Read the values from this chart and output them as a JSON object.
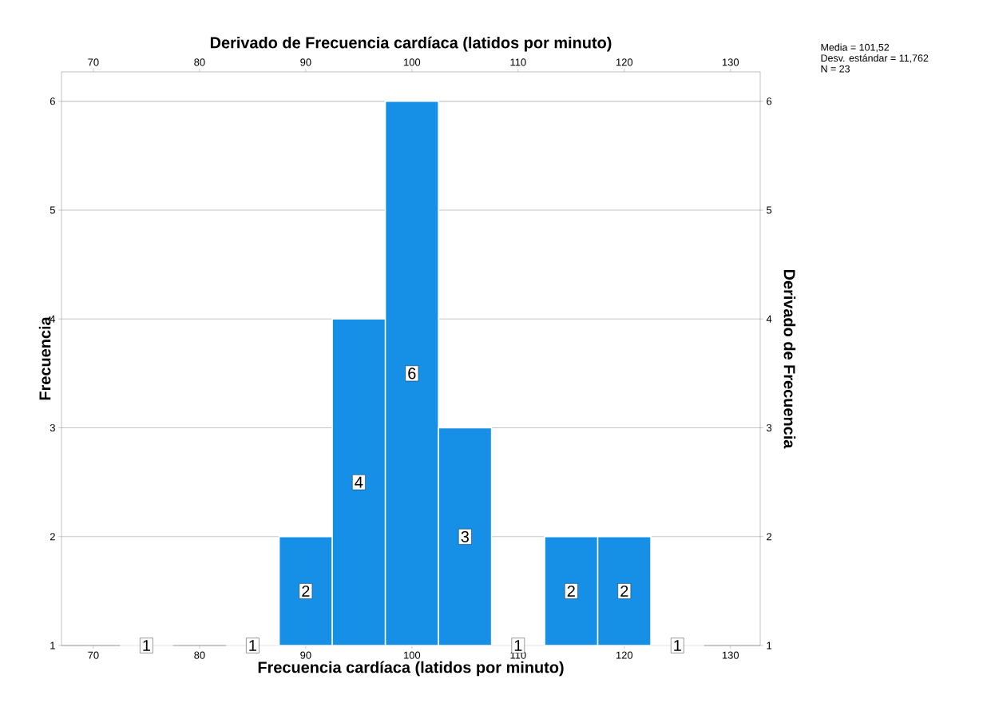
{
  "chart_data": {
    "type": "histogram",
    "xlabel": "Frecuencia cardíaca (latidos por minuto)",
    "ylabel": "Frecuencia",
    "x2label": "Derivado de Frecuencia cardíaca (latidos por minuto)",
    "y2label": "Derivado de Frecuencia",
    "bins": [
      72.5,
      77.5,
      82.5,
      87.5,
      92.5,
      97.5,
      102.5,
      107.5,
      112.5,
      117.5,
      122.5,
      127.5
    ],
    "values": [
      1,
      null,
      1,
      2,
      4,
      6,
      3,
      1,
      2,
      2,
      1
    ],
    "color": "#1590e6",
    "xlim": [
      67,
      132.8
    ],
    "xticks": [
      70,
      80,
      90,
      100,
      110,
      120,
      130
    ],
    "x2lim": [
      67,
      132.8
    ],
    "x2ticks": [
      70,
      80,
      90,
      100,
      110,
      120,
      130
    ],
    "ylim": [
      1,
      6.27
    ],
    "yticks": [
      1,
      2,
      3,
      4,
      5,
      6
    ],
    "y2lim": [
      1,
      6.27
    ],
    "y2ticks": [
      1,
      2,
      3,
      4,
      5,
      6
    ],
    "grid": "y",
    "data_labels": true,
    "annotations": [
      "Media = 101,52",
      "Desv. estándar = 11,762",
      "N = 23"
    ]
  }
}
